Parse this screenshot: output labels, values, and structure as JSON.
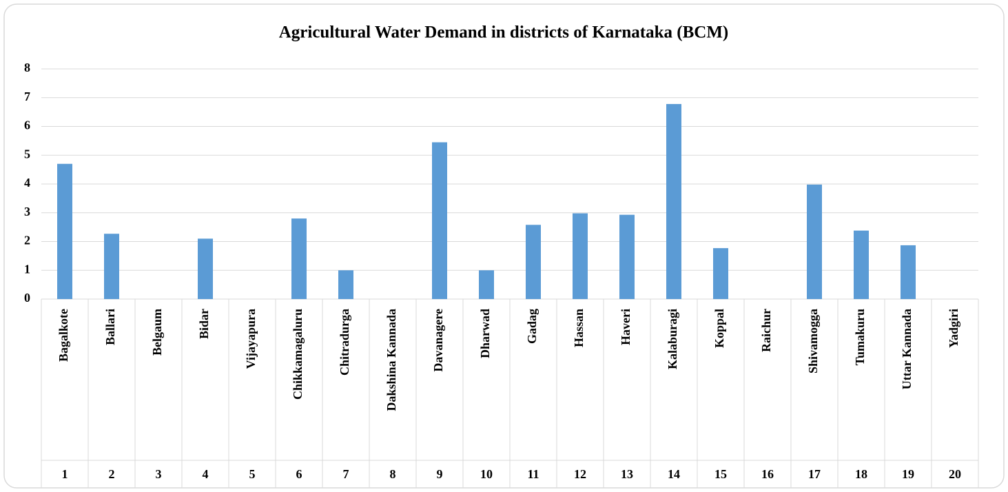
{
  "chart_data": {
    "type": "bar",
    "title": "Agricultural Water Demand in districts of Karnataka (BCM)",
    "categories": [
      "Bagalkote",
      "Ballari",
      "Belgaum",
      "Bidar",
      "Vijayapura",
      "Chikkamagaluru",
      "Chitradurga",
      "Dakshina Kannada",
      "Davanagere",
      "Dharwad",
      "Gadag",
      "Hassan",
      "Haveri",
      "Kalaburagi",
      "Koppal",
      "Raichur",
      "Shivamogga",
      "Tumakuru",
      "Uttar Kannada",
      "Yadgiri"
    ],
    "category_numbers": [
      "1",
      "2",
      "3",
      "4",
      "5",
      "6",
      "7",
      "8",
      "9",
      "10",
      "11",
      "12",
      "13",
      "14",
      "15",
      "16",
      "17",
      "18",
      "19",
      "20"
    ],
    "values": [
      4.7,
      2.27,
      0,
      2.1,
      0,
      2.8,
      1.0,
      0,
      5.45,
      1.0,
      2.58,
      2.98,
      2.93,
      6.78,
      1.77,
      0,
      3.98,
      2.38,
      1.87,
      0
    ],
    "color": "#5b9bd5",
    "ylim": [
      0,
      8
    ],
    "yticks": [
      0,
      1,
      2,
      3,
      4,
      5,
      6,
      7,
      8
    ],
    "grid": true
  }
}
